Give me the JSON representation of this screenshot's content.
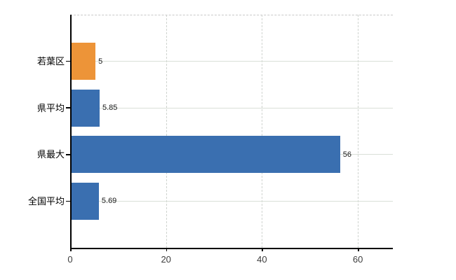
{
  "chart_data": {
    "type": "bar",
    "orientation": "horizontal",
    "title": "",
    "xlabel": "",
    "ylabel": "",
    "categories": [
      "若葉区",
      "県平均",
      "県最大",
      "全国平均"
    ],
    "values": [
      5,
      5.85,
      56,
      5.69
    ],
    "value_labels": [
      "5",
      "5.85",
      "56",
      "5.69"
    ],
    "x_ticks": [
      "0",
      "20",
      "40",
      "60"
    ],
    "x_tick_values": [
      0,
      20,
      40,
      60
    ],
    "xlim": [
      0,
      67.3
    ],
    "grid": true,
    "legend": false,
    "bar_colors": [
      "#ED9438",
      "#3A6FB0",
      "#3A6FB0",
      "#3A6FB0"
    ]
  },
  "colors": {
    "bar_orange": "#ED9438",
    "bar_blue": "#3A6FB0",
    "axis": "#000000",
    "gridline": "#d9dfd8",
    "dashed_border": "#c9c9c9",
    "tick_label": "#3d3d3d",
    "value_label": "#1a1a1a",
    "background": "#ffffff"
  }
}
